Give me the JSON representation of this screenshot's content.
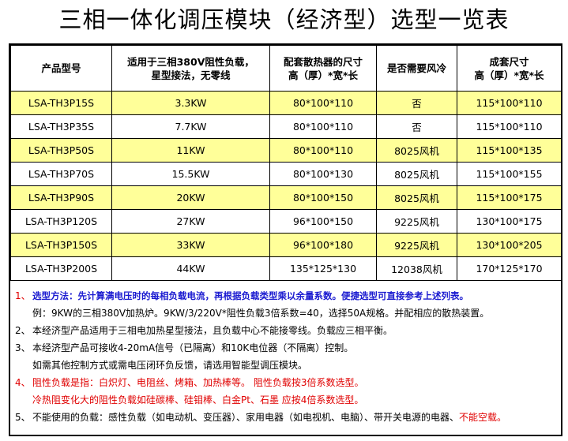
{
  "title": "三相一体化调压模块（经济型）选型一览表",
  "table": {
    "headers": [
      [
        "产品型号"
      ],
      [
        "适用于三相380V阻性负载，",
        "星型接法，无零线"
      ],
      [
        "配套散热器的尺寸",
        "高（厚）*宽*长"
      ],
      [
        "是否需要风冷"
      ],
      [
        "成套尺寸",
        "高（厚）*宽*长"
      ]
    ],
    "rows": [
      [
        "LSA-TH3P15S",
        "3.3KW",
        "80*100*110",
        "否",
        "115*100*110"
      ],
      [
        "LSA-TH3P35S",
        "7.7KW",
        "80*100*110",
        "否",
        "115*100*110"
      ],
      [
        "LSA-TH3P50S",
        "11KW",
        "80*100*110",
        "8025风机",
        "115*100*135"
      ],
      [
        "LSA-TH3P70S",
        "15.5KW",
        "80*100*130",
        "8025风机",
        "115*100*155"
      ],
      [
        "LSA-TH3P90S",
        "20KW",
        "80*100*150",
        "8025风机",
        "115*100*175"
      ],
      [
        "LSA-TH3P120S",
        "27KW",
        "96*100*150",
        "9225风机",
        "130*100*175"
      ],
      [
        "LSA-TH3P150S",
        "33KW",
        "96*100*180",
        "9225风机",
        "130*100*205"
      ],
      [
        "LSA-TH3P200S",
        "44KW",
        "135*125*130",
        "12038风机",
        "170*125*170"
      ]
    ]
  },
  "notes": [
    {
      "number": "1、",
      "lines": [
        [
          "选型方法：先计算满电压时的每相负载电流，再根据负载类型乘以余量系数。便捷选型可直接参考上述列表。"
        ],
        [
          "例：9KW的三相380V加热炉。9KW/3/220V*阻性负载3倍系数=40，选择50A规格。并配相应的散热装置。"
        ]
      ]
    },
    {
      "number": "2、",
      "lines": [
        [
          "本经济型产品适用于三相电加热星型接法，且负载中心不能接零线。负载应三相平衡。"
        ]
      ]
    },
    {
      "number": "3、",
      "lines": [
        [
          "本经济型产品可接收4-20mA信号（已隔离）和10K电位器（不隔离）控制。"
        ],
        [
          "如需其他控制方式或需电压闭环负反馈，请选用智能型调压模块。"
        ]
      ]
    },
    {
      "number": "4、",
      "lines": [
        [
          "阻性负载是指：白炽灯、电阻丝、烤箱、加热棒等。 阻性负载按3倍系数选型。"
        ],
        [
          "冷热阻变化大的阻性负载如硅碳棒、硅钼棒、白金Pt、石墨 应按4倍系数选型。"
        ]
      ]
    },
    {
      "number": "5、",
      "lines": [
        [
          "不能使用的负载：感性负载（如电动机、变压器）、家用电器（如电视机、电脑）、带开关电源的电器、",
          "不能空载。"
        ]
      ]
    }
  ]
}
